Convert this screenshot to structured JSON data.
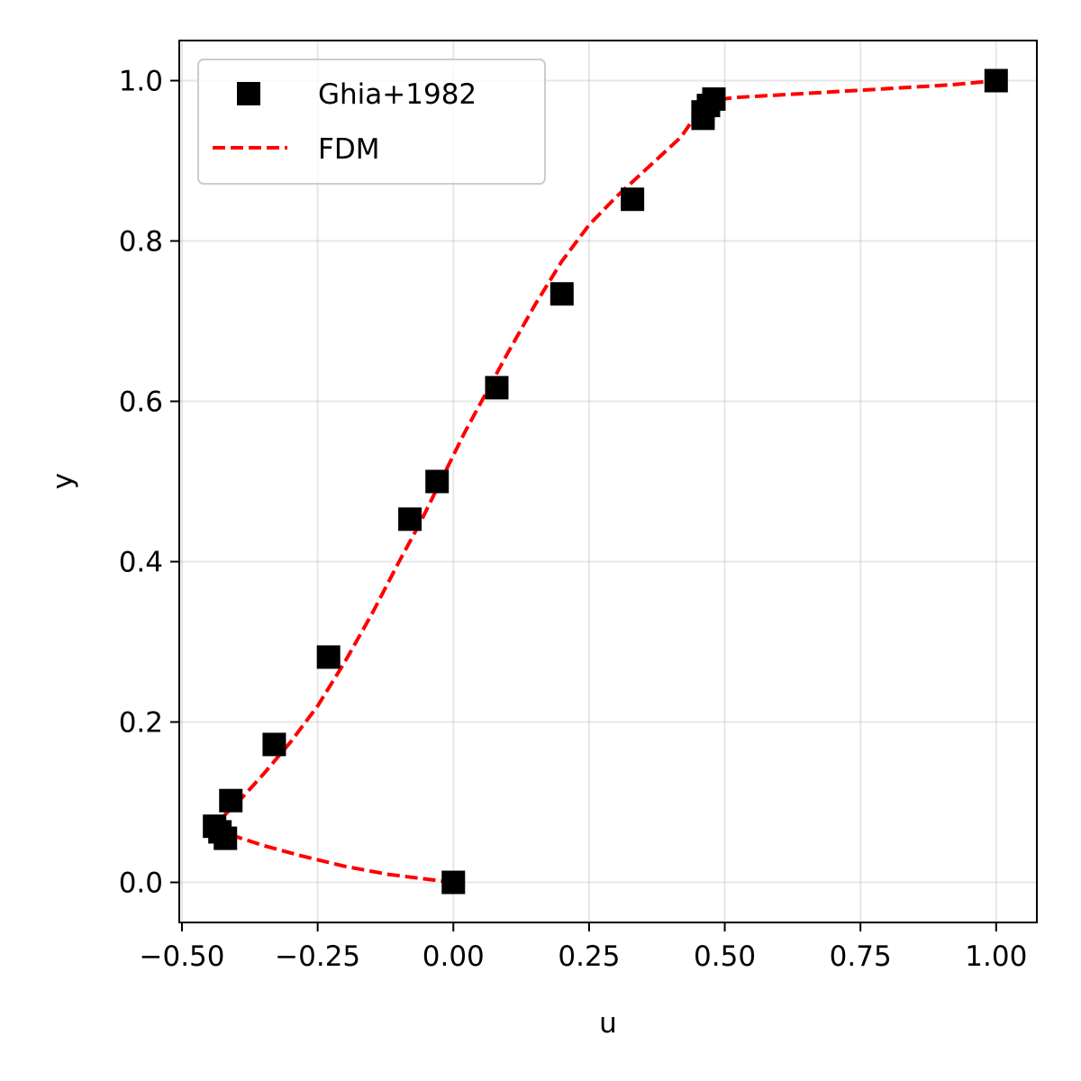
{
  "chart_data": {
    "type": "scatter",
    "title": "",
    "xlabel": "u",
    "ylabel": "y",
    "xlim": [
      -0.505,
      1.075
    ],
    "ylim": [
      -0.05,
      1.05
    ],
    "x_ticks": [
      -0.5,
      -0.25,
      0.0,
      0.25,
      0.5,
      0.75,
      1.0
    ],
    "x_tick_labels": [
      "−0.50",
      "−0.25",
      "0.00",
      "0.25",
      "0.50",
      "0.75",
      "1.00"
    ],
    "y_ticks": [
      0.0,
      0.2,
      0.4,
      0.6,
      0.8,
      1.0
    ],
    "y_tick_labels": [
      "0.0",
      "0.2",
      "0.4",
      "0.6",
      "0.8",
      "1.0"
    ],
    "grid": true,
    "legend_position": "upper-left",
    "series": [
      {
        "name": "Ghia+1982",
        "kind": "scatter",
        "marker": "square",
        "color": "#000000",
        "points": [
          [
            1.0,
            1.0
          ],
          [
            0.48,
            0.977
          ],
          [
            0.47,
            0.969
          ],
          [
            0.46,
            0.961
          ],
          [
            0.46,
            0.953
          ],
          [
            0.33,
            0.852
          ],
          [
            0.2,
            0.734
          ],
          [
            0.08,
            0.617
          ],
          [
            -0.03,
            0.5
          ],
          [
            -0.08,
            0.453
          ],
          [
            -0.23,
            0.281
          ],
          [
            -0.33,
            0.172
          ],
          [
            -0.41,
            0.102
          ],
          [
            -0.44,
            0.07
          ],
          [
            -0.43,
            0.063
          ],
          [
            -0.42,
            0.055
          ],
          [
            0.0,
            0.0
          ]
        ]
      },
      {
        "name": "FDM",
        "kind": "line",
        "style": "dashed",
        "color": "#ff0000",
        "points": [
          [
            0.0,
            0.0
          ],
          [
            -0.05,
            0.004
          ],
          [
            -0.12,
            0.01
          ],
          [
            -0.2,
            0.02
          ],
          [
            -0.28,
            0.033
          ],
          [
            -0.35,
            0.046
          ],
          [
            -0.4,
            0.057
          ],
          [
            -0.425,
            0.065
          ],
          [
            -0.43,
            0.072
          ],
          [
            -0.42,
            0.085
          ],
          [
            -0.39,
            0.105
          ],
          [
            -0.35,
            0.135
          ],
          [
            -0.3,
            0.175
          ],
          [
            -0.25,
            0.22
          ],
          [
            -0.2,
            0.275
          ],
          [
            -0.15,
            0.335
          ],
          [
            -0.1,
            0.4
          ],
          [
            -0.06,
            0.45
          ],
          [
            -0.02,
            0.505
          ],
          [
            0.02,
            0.56
          ],
          [
            0.06,
            0.61
          ],
          [
            0.1,
            0.66
          ],
          [
            0.15,
            0.72
          ],
          [
            0.2,
            0.775
          ],
          [
            0.25,
            0.82
          ],
          [
            0.3,
            0.855
          ],
          [
            0.34,
            0.88
          ],
          [
            0.38,
            0.905
          ],
          [
            0.42,
            0.93
          ],
          [
            0.44,
            0.95
          ],
          [
            0.45,
            0.965
          ],
          [
            0.47,
            0.975
          ],
          [
            0.52,
            0.979
          ],
          [
            0.65,
            0.984
          ],
          [
            0.8,
            0.99
          ],
          [
            0.92,
            0.995
          ],
          [
            1.0,
            1.0
          ]
        ]
      }
    ]
  }
}
